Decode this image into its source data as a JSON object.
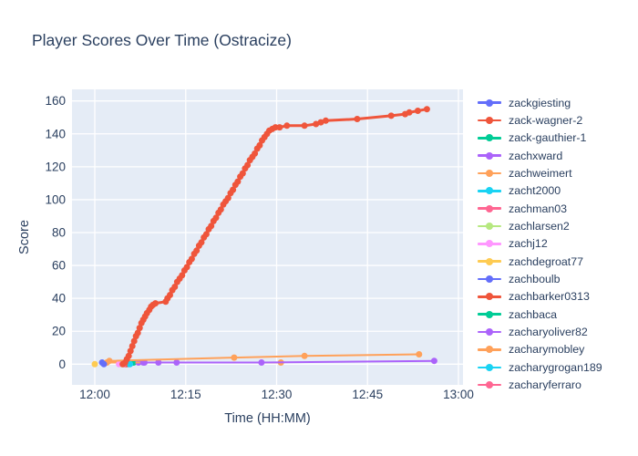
{
  "page": {
    "title": "Player Scores Over Time (Ostracize)"
  },
  "axes": {
    "x_title": "Time (HH:MM)",
    "y_title": "Score",
    "x_tick_labels": [
      "12:00",
      "12:15",
      "12:30",
      "12:45",
      "13:00"
    ],
    "x_tick_minutes": [
      0,
      15,
      30,
      45,
      60
    ],
    "y_ticks": [
      0,
      20,
      40,
      60,
      80,
      100,
      120,
      140,
      160
    ]
  },
  "style": {
    "paper_bg": "#ffffff",
    "plot_bg": "#e5ecf6",
    "grid_color": "#ffffff",
    "text_color": "#2a3f5f"
  },
  "chart_data": {
    "type": "line",
    "title": "Player Scores Over Time (Ostracize)",
    "xlabel": "Time (HH:MM)",
    "ylabel": "Score",
    "x_unit": "minutes after 12:00",
    "x_axis_range": [
      0,
      60
    ],
    "ylim": [
      0,
      160
    ],
    "grid": true,
    "legend_position": "right",
    "series": [
      {
        "name": "zackgiesting",
        "color": "#636efa",
        "points": [
          [
            1.2,
            1
          ]
        ]
      },
      {
        "name": "zack-wagner-2",
        "color": "#ef553b",
        "points": [
          [
            4.6,
            0
          ],
          [
            5.0,
            1
          ],
          [
            5.3,
            3
          ],
          [
            5.6,
            5
          ],
          [
            5.9,
            8
          ],
          [
            6.2,
            11
          ],
          [
            6.5,
            14
          ],
          [
            6.8,
            17
          ],
          [
            7.1,
            19
          ],
          [
            7.4,
            22
          ],
          [
            7.7,
            25
          ],
          [
            8.0,
            27
          ],
          [
            8.3,
            29
          ],
          [
            8.6,
            31
          ],
          [
            9.0,
            33
          ],
          [
            9.3,
            35
          ],
          [
            9.6,
            36
          ],
          [
            10.0,
            37
          ],
          [
            11.7,
            38
          ],
          [
            12.0,
            40
          ],
          [
            12.4,
            42
          ],
          [
            12.8,
            45
          ],
          [
            13.2,
            47
          ],
          [
            13.6,
            50
          ],
          [
            14.0,
            52
          ],
          [
            14.4,
            54
          ],
          [
            14.8,
            57
          ],
          [
            15.2,
            59
          ],
          [
            15.6,
            62
          ],
          [
            16.0,
            64
          ],
          [
            16.4,
            67
          ],
          [
            16.8,
            69
          ],
          [
            17.2,
            72
          ],
          [
            17.6,
            74
          ],
          [
            18.0,
            77
          ],
          [
            18.4,
            79
          ],
          [
            18.8,
            82
          ],
          [
            19.2,
            84
          ],
          [
            19.6,
            87
          ],
          [
            20.0,
            89
          ],
          [
            20.4,
            92
          ],
          [
            20.8,
            94
          ],
          [
            21.2,
            97
          ],
          [
            21.6,
            99
          ],
          [
            22.0,
            101
          ],
          [
            22.4,
            104
          ],
          [
            22.8,
            106
          ],
          [
            23.2,
            109
          ],
          [
            23.6,
            111
          ],
          [
            24.0,
            114
          ],
          [
            24.4,
            116
          ],
          [
            24.8,
            119
          ],
          [
            25.2,
            121
          ],
          [
            25.6,
            124
          ],
          [
            26.0,
            126
          ],
          [
            26.4,
            128
          ],
          [
            26.8,
            131
          ],
          [
            27.2,
            133
          ],
          [
            27.6,
            136
          ],
          [
            28.0,
            138
          ],
          [
            28.4,
            140
          ],
          [
            28.8,
            142
          ],
          [
            29.3,
            143
          ],
          [
            29.8,
            144
          ],
          [
            30.5,
            144
          ],
          [
            31.7,
            145
          ],
          [
            34.6,
            145
          ],
          [
            36.5,
            146
          ],
          [
            37.3,
            147
          ],
          [
            38.1,
            148
          ],
          [
            43.3,
            149
          ],
          [
            48.9,
            151
          ],
          [
            51.2,
            152
          ],
          [
            51.9,
            153
          ],
          [
            53.3,
            154
          ],
          [
            54.8,
            155
          ]
        ]
      },
      {
        "name": "zack-gauthier-1",
        "color": "#00cc96",
        "points": [
          [
            6.4,
            1
          ]
        ]
      },
      {
        "name": "zachxward",
        "color": "#ab63fa",
        "points": [
          [
            7.2,
            1
          ],
          [
            8.2,
            1
          ],
          [
            10.5,
            1
          ],
          [
            13.5,
            1
          ]
        ]
      },
      {
        "name": "zachweimert",
        "color": "#ffa15a",
        "points": [
          [
            2.0,
            1
          ],
          [
            30.7,
            1
          ]
        ]
      },
      {
        "name": "zacht2000",
        "color": "#19d3f3",
        "points": [
          [
            5.5,
            0
          ]
        ]
      },
      {
        "name": "zachman03",
        "color": "#ff6692",
        "points": [
          [
            5.0,
            0
          ]
        ]
      },
      {
        "name": "zachlarsen2",
        "color": "#b6e880",
        "points": [
          [
            4.5,
            0
          ]
        ]
      },
      {
        "name": "zachj12",
        "color": "#ff97ff",
        "points": [
          [
            4.0,
            0
          ]
        ]
      },
      {
        "name": "zachdegroat77",
        "color": "#fecb52",
        "points": [
          [
            0.0,
            0
          ]
        ]
      },
      {
        "name": "zachboulb",
        "color": "#636efa",
        "points": [
          [
            1.5,
            0
          ]
        ]
      },
      {
        "name": "zachbarker0313",
        "color": "#ef553b",
        "points": [
          [
            5.2,
            0
          ]
        ]
      },
      {
        "name": "zachbaca",
        "color": "#00cc96",
        "points": [
          [
            6.2,
            1
          ]
        ]
      },
      {
        "name": "zacharyoliver82",
        "color": "#ab63fa",
        "points": [
          [
            8.0,
            1
          ],
          [
            27.5,
            1
          ],
          [
            56.0,
            2
          ]
        ]
      },
      {
        "name": "zacharymobley",
        "color": "#ffa15a",
        "points": [
          [
            2.4,
            2
          ],
          [
            23.0,
            4
          ],
          [
            34.6,
            5
          ],
          [
            53.5,
            6
          ]
        ]
      },
      {
        "name": "zacharygrogan189",
        "color": "#19d3f3",
        "points": [
          [
            5.8,
            0
          ]
        ]
      },
      {
        "name": "zacharyferraro",
        "color": "#ff6692",
        "points": [
          [
            4.8,
            0
          ]
        ]
      }
    ]
  }
}
